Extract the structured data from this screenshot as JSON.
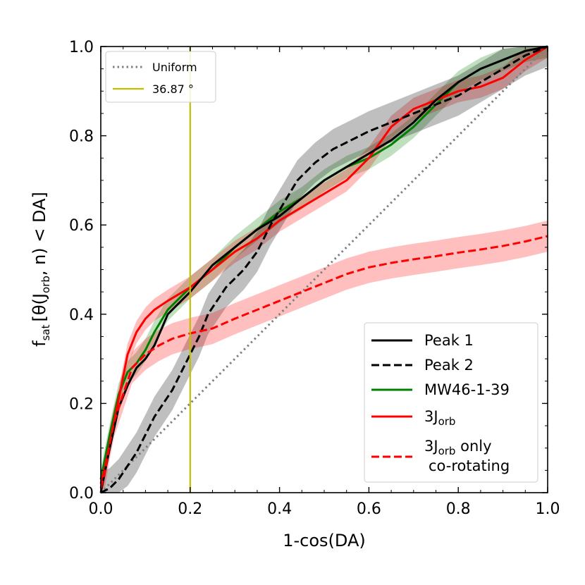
{
  "chart_data": {
    "type": "line",
    "xlabel": "1-cos(DA)",
    "ylabel": {
      "base": "f",
      "base_sub": "sat",
      "open": "[θ(J",
      "j_sub": "orb",
      "mid": ", n) < DA]"
    },
    "xlim": [
      0.0,
      1.0
    ],
    "ylim": [
      0.0,
      1.0
    ],
    "xticks": [
      "0.0",
      "0.2",
      "0.4",
      "0.6",
      "0.8",
      "1.0"
    ],
    "yticks": [
      "0.0",
      "0.2",
      "0.4",
      "0.6",
      "0.8",
      "1.0"
    ],
    "xtick_values": [
      0.0,
      0.2,
      0.4,
      0.6,
      0.8,
      1.0
    ],
    "ytick_values": [
      0.0,
      0.2,
      0.4,
      0.6,
      0.8,
      1.0
    ],
    "grid": false,
    "vline": {
      "x": 0.2,
      "color": "#bfbf00",
      "label": "36.87 °"
    },
    "legend_top": {
      "placement": "top-left",
      "entries": [
        "Uniform",
        "36.87 °"
      ]
    },
    "legend_bottom": {
      "placement": "bottom-right",
      "entries": [
        {
          "label": "Peak 1"
        },
        {
          "label": "Peak 2"
        },
        {
          "label": "MW46-1-39"
        },
        {
          "label": "3J",
          "label_sub": "orb"
        },
        {
          "label": "3J",
          "label_sub": "orb",
          "label_rest": " only",
          "line2": "co-rotating"
        }
      ]
    },
    "series": [
      {
        "name": "Uniform",
        "color": "#808080",
        "style": "dotted",
        "band": 0,
        "x": [
          0,
          1
        ],
        "y": [
          0,
          1
        ]
      },
      {
        "name": "MW46-1-39",
        "color": "#008000",
        "style": "solid",
        "band": 0.025,
        "x": [
          0,
          0.01,
          0.02,
          0.04,
          0.06,
          0.08,
          0.1,
          0.12,
          0.15,
          0.2,
          0.25,
          0.3,
          0.35,
          0.4,
          0.45,
          0.5,
          0.55,
          0.6,
          0.65,
          0.7,
          0.75,
          0.8,
          0.85,
          0.9,
          0.95,
          1.0
        ],
        "y": [
          0.03,
          0.08,
          0.13,
          0.22,
          0.27,
          0.29,
          0.32,
          0.36,
          0.41,
          0.46,
          0.5,
          0.55,
          0.59,
          0.63,
          0.66,
          0.7,
          0.73,
          0.75,
          0.78,
          0.82,
          0.87,
          0.92,
          0.95,
          0.97,
          0.99,
          1.0
        ]
      },
      {
        "name": "3Jorb",
        "color": "#ff0000",
        "style": "solid",
        "band": 0.025,
        "x": [
          0,
          0.01,
          0.02,
          0.04,
          0.06,
          0.08,
          0.1,
          0.12,
          0.15,
          0.2,
          0.25,
          0.3,
          0.35,
          0.4,
          0.45,
          0.5,
          0.55,
          0.6,
          0.65,
          0.7,
          0.75,
          0.8,
          0.85,
          0.9,
          0.95,
          1.0
        ],
        "y": [
          0.02,
          0.06,
          0.11,
          0.21,
          0.31,
          0.36,
          0.39,
          0.41,
          0.43,
          0.46,
          0.5,
          0.54,
          0.57,
          0.61,
          0.64,
          0.67,
          0.7,
          0.75,
          0.82,
          0.86,
          0.88,
          0.9,
          0.91,
          0.93,
          0.97,
          1.0
        ]
      },
      {
        "name": "Peak 1",
        "color": "#000000",
        "style": "solid",
        "band": 0,
        "x": [
          0,
          0.01,
          0.02,
          0.04,
          0.06,
          0.08,
          0.1,
          0.12,
          0.15,
          0.2,
          0.25,
          0.3,
          0.35,
          0.4,
          0.45,
          0.5,
          0.55,
          0.6,
          0.65,
          0.7,
          0.75,
          0.8,
          0.85,
          0.9,
          0.95,
          1.0
        ],
        "y": [
          0.0,
          0.05,
          0.1,
          0.19,
          0.24,
          0.28,
          0.3,
          0.33,
          0.4,
          0.45,
          0.51,
          0.55,
          0.59,
          0.62,
          0.66,
          0.7,
          0.73,
          0.76,
          0.79,
          0.83,
          0.88,
          0.92,
          0.95,
          0.97,
          0.99,
          1.0
        ]
      },
      {
        "name": "Peak 2",
        "color": "#000000",
        "style": "dashed",
        "band": 0.045,
        "x": [
          0,
          0.02,
          0.04,
          0.06,
          0.08,
          0.1,
          0.12,
          0.14,
          0.16,
          0.18,
          0.2,
          0.22,
          0.24,
          0.26,
          0.28,
          0.3,
          0.32,
          0.35,
          0.38,
          0.41,
          0.44,
          0.48,
          0.52,
          0.56,
          0.6,
          0.65,
          0.7,
          0.75,
          0.8,
          0.85,
          0.9,
          0.95,
          1.0
        ],
        "y": [
          0.0,
          0.01,
          0.03,
          0.06,
          0.09,
          0.13,
          0.17,
          0.2,
          0.23,
          0.27,
          0.31,
          0.35,
          0.4,
          0.43,
          0.46,
          0.48,
          0.5,
          0.54,
          0.6,
          0.65,
          0.7,
          0.74,
          0.77,
          0.79,
          0.81,
          0.83,
          0.85,
          0.87,
          0.89,
          0.92,
          0.95,
          0.98,
          1.0
        ]
      },
      {
        "name": "3Jorb only co-rotating",
        "color": "#ff0000",
        "style": "dashed",
        "band": 0.035,
        "x": [
          0,
          0.01,
          0.02,
          0.03,
          0.05,
          0.07,
          0.1,
          0.13,
          0.16,
          0.2,
          0.25,
          0.3,
          0.35,
          0.4,
          0.45,
          0.5,
          0.55,
          0.6,
          0.65,
          0.7,
          0.75,
          0.8,
          0.85,
          0.9,
          0.95,
          1.0
        ],
        "y": [
          0.01,
          0.05,
          0.11,
          0.16,
          0.22,
          0.28,
          0.31,
          0.33,
          0.345,
          0.357,
          0.368,
          0.39,
          0.41,
          0.43,
          0.45,
          0.47,
          0.49,
          0.505,
          0.515,
          0.523,
          0.53,
          0.538,
          0.545,
          0.553,
          0.563,
          0.575
        ]
      }
    ]
  }
}
